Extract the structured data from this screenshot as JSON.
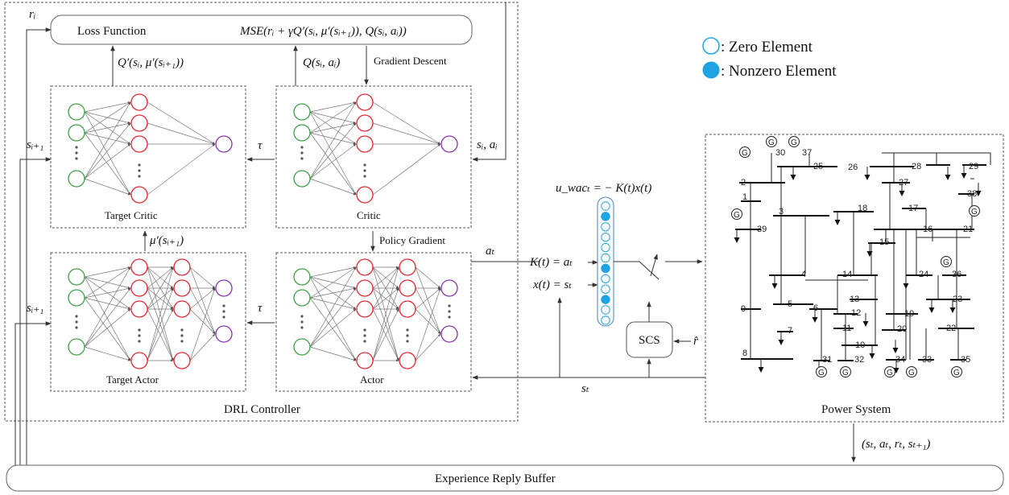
{
  "labels": {
    "loss_function": "Loss Function",
    "mse": "MSE(rᵢ + γQ′(sᵢ, μ′(sᵢ₊₁)), Q(sᵢ, aᵢ))",
    "q_prime": "Q′(sᵢ, μ′(sᵢ₊₁))",
    "q": "Q(sᵢ, aᵢ)",
    "gradient_descent": "Gradient Descent",
    "target_critic": "Target Critic",
    "critic": "Critic",
    "target_actor": "Target Actor",
    "actor": "Actor",
    "mu_prime": "μ′(sᵢ₊₁)",
    "policy_gradient": "Policy Gradient",
    "tau_top": "τ",
    "tau_bottom": "τ",
    "r_i": "rᵢ",
    "s_i1_top": "sᵢ₊₁",
    "s_i1_bottom": "sᵢ₊₁",
    "s_i_a_i": "sᵢ, aᵢ",
    "drl_controller": "DRL Controller",
    "a_t": "aₜ",
    "u_wac": "u_wacₜ = − K(t)x(t)",
    "k_eq": "K(t) = aₜ",
    "x_eq": "x(t) = sₜ",
    "scs": "SCS",
    "r_hat": "r̂",
    "s_t": "sₜ",
    "power_system": "Power System",
    "transition": "(sₜ, aₜ, rₜ, sₜ₊₁)",
    "buffer": "Experience Reply Buffer",
    "legend_zero": ": Zero Element",
    "legend_nonzero": ": Nonzero Element"
  },
  "colors": {
    "input_node": "#3aa043",
    "hidden_node": "#e0242b",
    "output_node": "#8a2fb0",
    "vector_zero": "#1ea4e3",
    "vector_nonzero": "#1ea4e3"
  },
  "vector": [
    "zero",
    "nonzero",
    "zero",
    "zero",
    "zero",
    "zero",
    "nonzero",
    "zero",
    "zero",
    "nonzero",
    "zero",
    "zero"
  ],
  "buses": [
    "30",
    "37",
    "25",
    "26",
    "28",
    "29",
    "2",
    "27",
    "1",
    "38",
    "3",
    "18",
    "17",
    "39",
    "16",
    "21",
    "15",
    "36",
    "4",
    "14",
    "24",
    "9",
    "5",
    "6",
    "13",
    "12",
    "23",
    "7",
    "11",
    "19",
    "20",
    "10",
    "22",
    "8",
    "31",
    "32",
    "34",
    "33",
    "35"
  ],
  "generators": 10
}
